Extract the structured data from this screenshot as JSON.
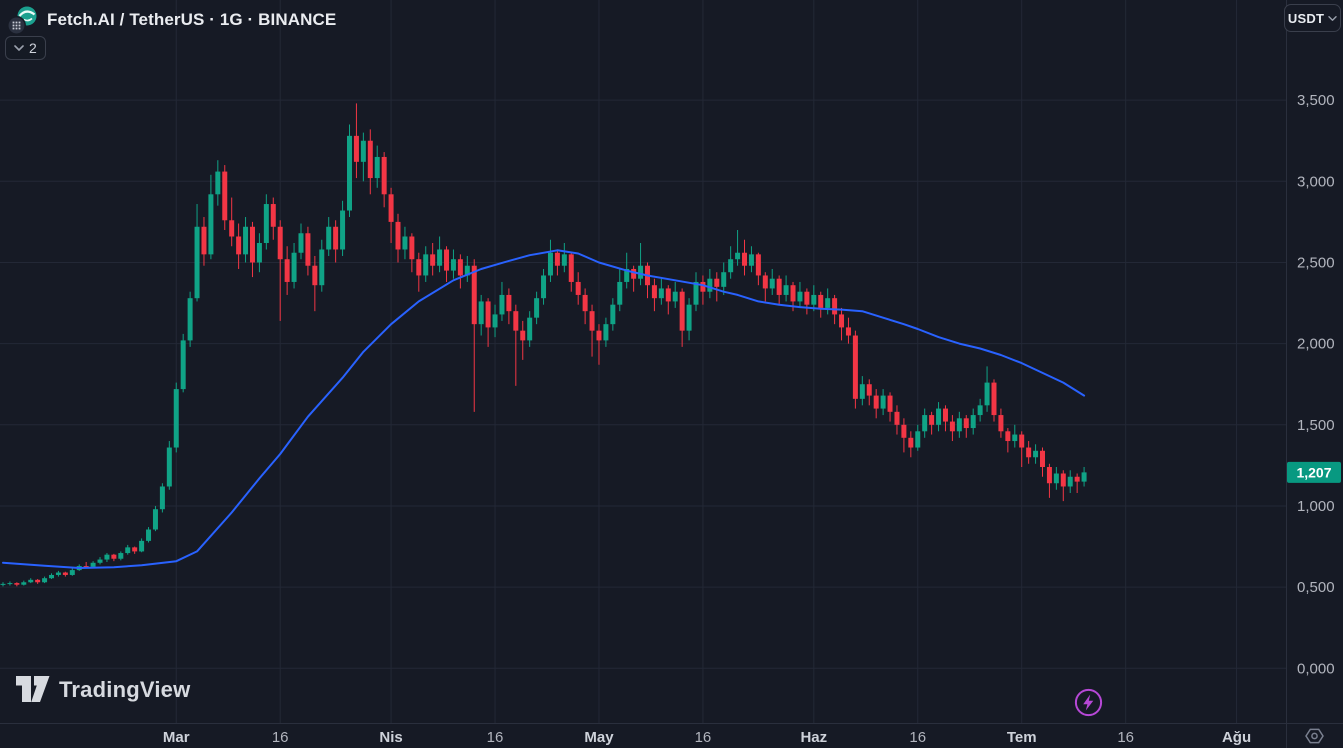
{
  "header": {
    "symbol_title": "Fetch.AI / TetherUS · 1G · BINANCE",
    "symbol_logo": "fetch-ai-logo",
    "legend_badge": {
      "count": "2",
      "icon": "chevron-down-icon"
    }
  },
  "currency_button": {
    "label": "USDT",
    "icon": "chevron-down-icon"
  },
  "watermark": {
    "brand": "TradingView"
  },
  "toolbar": {
    "flash_icon": "lightning-icon",
    "corner_icon": "hexagon-settings-icon"
  },
  "colors": {
    "background": "#161a25",
    "grid": "#232836",
    "axis_border": "#2a2f3d",
    "axis_text": "#b2b5be",
    "axis_text_major": "#ced2da",
    "candle_up": "#10a386",
    "candle_down": "#f23645",
    "ma_line": "#2962ff",
    "last_price_badge": "#089981",
    "flash_purple": "#b648d6"
  },
  "price_axis": {
    "ticks": [
      {
        "label": "3,500",
        "value": 3.5
      },
      {
        "label": "3,000",
        "value": 3.0
      },
      {
        "label": "2,500",
        "value": 2.5
      },
      {
        "label": "2,000",
        "value": 2.0
      },
      {
        "label": "1,500",
        "value": 1.5
      },
      {
        "label": "1,000",
        "value": 1.0
      },
      {
        "label": "0,500",
        "value": 0.5
      },
      {
        "label": "0,000",
        "value": 0.0
      }
    ],
    "last_price": {
      "label": "1,207",
      "value": 1.207,
      "direction": "up"
    }
  },
  "time_axis": {
    "ticks": [
      {
        "label": "Mar",
        "day": 25,
        "major": true
      },
      {
        "label": "16",
        "day": 40,
        "major": false
      },
      {
        "label": "Nis",
        "day": 56,
        "major": true
      },
      {
        "label": "16",
        "day": 71,
        "major": false
      },
      {
        "label": "May",
        "day": 86,
        "major": true
      },
      {
        "label": "16",
        "day": 101,
        "major": false
      },
      {
        "label": "Haz",
        "day": 117,
        "major": true
      },
      {
        "label": "16",
        "day": 132,
        "major": false
      },
      {
        "label": "Tem",
        "day": 147,
        "major": true
      },
      {
        "label": "16",
        "day": 162,
        "major": false
      },
      {
        "label": "Ağu",
        "day": 178,
        "major": true
      }
    ]
  },
  "chart_data": {
    "type": "candlestick",
    "title": "Fetch.AI / TetherUS",
    "interval": "1G",
    "exchange": "BINANCE",
    "quote_currency": "USDT",
    "ylim_visible": [
      0.0,
      3.5
    ],
    "grid": true,
    "last_price": 1.207,
    "candles_ohlc": [
      [
        0.515,
        0.53,
        0.505,
        0.52
      ],
      [
        0.52,
        0.535,
        0.51,
        0.525
      ],
      [
        0.525,
        0.53,
        0.505,
        0.515
      ],
      [
        0.515,
        0.54,
        0.51,
        0.53
      ],
      [
        0.53,
        0.555,
        0.525,
        0.545
      ],
      [
        0.545,
        0.55,
        0.52,
        0.53
      ],
      [
        0.53,
        0.565,
        0.525,
        0.555
      ],
      [
        0.555,
        0.585,
        0.55,
        0.575
      ],
      [
        0.575,
        0.6,
        0.565,
        0.59
      ],
      [
        0.59,
        0.595,
        0.565,
        0.575
      ],
      [
        0.575,
        0.615,
        0.57,
        0.605
      ],
      [
        0.605,
        0.64,
        0.6,
        0.63
      ],
      [
        0.63,
        0.655,
        0.615,
        0.625
      ],
      [
        0.625,
        0.66,
        0.62,
        0.65
      ],
      [
        0.65,
        0.685,
        0.64,
        0.67
      ],
      [
        0.67,
        0.71,
        0.655,
        0.7
      ],
      [
        0.7,
        0.705,
        0.66,
        0.675
      ],
      [
        0.675,
        0.72,
        0.665,
        0.71
      ],
      [
        0.71,
        0.76,
        0.7,
        0.745
      ],
      [
        0.745,
        0.75,
        0.705,
        0.72
      ],
      [
        0.72,
        0.8,
        0.715,
        0.785
      ],
      [
        0.785,
        0.87,
        0.775,
        0.855
      ],
      [
        0.855,
        1.0,
        0.845,
        0.98
      ],
      [
        0.98,
        1.14,
        0.96,
        1.12
      ],
      [
        1.12,
        1.4,
        1.1,
        1.36
      ],
      [
        1.36,
        1.76,
        1.33,
        1.72
      ],
      [
        1.72,
        2.06,
        1.7,
        2.02
      ],
      [
        2.02,
        2.32,
        1.98,
        2.28
      ],
      [
        2.28,
        2.86,
        2.26,
        2.72
      ],
      [
        2.72,
        2.78,
        2.48,
        2.55
      ],
      [
        2.55,
        3.04,
        2.52,
        2.92
      ],
      [
        2.92,
        3.13,
        2.85,
        3.06
      ],
      [
        3.06,
        3.1,
        2.7,
        2.76
      ],
      [
        2.76,
        2.9,
        2.6,
        2.66
      ],
      [
        2.66,
        2.74,
        2.46,
        2.55
      ],
      [
        2.55,
        2.78,
        2.5,
        2.72
      ],
      [
        2.72,
        2.75,
        2.41,
        2.5
      ],
      [
        2.5,
        2.68,
        2.44,
        2.62
      ],
      [
        2.62,
        2.92,
        2.58,
        2.86
      ],
      [
        2.86,
        2.9,
        2.64,
        2.72
      ],
      [
        2.72,
        2.76,
        2.14,
        2.52
      ],
      [
        2.52,
        2.6,
        2.3,
        2.38
      ],
      [
        2.38,
        2.62,
        2.34,
        2.56
      ],
      [
        2.56,
        2.74,
        2.52,
        2.68
      ],
      [
        2.68,
        2.72,
        2.42,
        2.48
      ],
      [
        2.48,
        2.54,
        2.2,
        2.36
      ],
      [
        2.36,
        2.64,
        2.32,
        2.58
      ],
      [
        2.58,
        2.78,
        2.54,
        2.72
      ],
      [
        2.72,
        2.76,
        2.5,
        2.58
      ],
      [
        2.58,
        2.88,
        2.54,
        2.82
      ],
      [
        2.82,
        3.35,
        2.78,
        3.28
      ],
      [
        3.28,
        3.48,
        3.02,
        3.12
      ],
      [
        3.12,
        3.3,
        3.0,
        3.25
      ],
      [
        3.25,
        3.32,
        2.92,
        3.02
      ],
      [
        3.02,
        3.22,
        2.96,
        3.15
      ],
      [
        3.15,
        3.18,
        2.84,
        2.92
      ],
      [
        2.92,
        2.96,
        2.62,
        2.75
      ],
      [
        2.75,
        2.8,
        2.5,
        2.58
      ],
      [
        2.58,
        2.72,
        2.52,
        2.66
      ],
      [
        2.66,
        2.68,
        2.44,
        2.52
      ],
      [
        2.52,
        2.56,
        2.32,
        2.42
      ],
      [
        2.42,
        2.6,
        2.38,
        2.55
      ],
      [
        2.55,
        2.62,
        2.42,
        2.48
      ],
      [
        2.48,
        2.66,
        2.44,
        2.58
      ],
      [
        2.58,
        2.6,
        2.38,
        2.45
      ],
      [
        2.45,
        2.58,
        2.4,
        2.52
      ],
      [
        2.52,
        2.55,
        2.34,
        2.42
      ],
      [
        2.42,
        2.54,
        2.38,
        2.48
      ],
      [
        2.48,
        2.52,
        1.58,
        2.12
      ],
      [
        2.12,
        2.3,
        2.05,
        2.26
      ],
      [
        2.26,
        2.28,
        1.98,
        2.1
      ],
      [
        2.1,
        2.24,
        2.04,
        2.18
      ],
      [
        2.18,
        2.38,
        2.14,
        2.3
      ],
      [
        2.3,
        2.34,
        2.12,
        2.2
      ],
      [
        2.2,
        2.24,
        1.74,
        2.08
      ],
      [
        2.08,
        2.14,
        1.9,
        2.02
      ],
      [
        2.02,
        2.2,
        1.98,
        2.16
      ],
      [
        2.16,
        2.32,
        2.12,
        2.28
      ],
      [
        2.28,
        2.46,
        2.24,
        2.42
      ],
      [
        2.42,
        2.64,
        2.38,
        2.56
      ],
      [
        2.56,
        2.58,
        2.42,
        2.48
      ],
      [
        2.48,
        2.62,
        2.44,
        2.55
      ],
      [
        2.55,
        2.56,
        2.32,
        2.38
      ],
      [
        2.38,
        2.44,
        2.24,
        2.3
      ],
      [
        2.3,
        2.34,
        2.12,
        2.2
      ],
      [
        2.2,
        2.24,
        1.92,
        2.08
      ],
      [
        2.08,
        2.12,
        1.87,
        2.02
      ],
      [
        2.02,
        2.16,
        1.98,
        2.12
      ],
      [
        2.12,
        2.28,
        2.08,
        2.24
      ],
      [
        2.24,
        2.46,
        2.2,
        2.38
      ],
      [
        2.38,
        2.56,
        2.34,
        2.46
      ],
      [
        2.46,
        2.48,
        2.32,
        2.4
      ],
      [
        2.4,
        2.62,
        2.36,
        2.48
      ],
      [
        2.48,
        2.5,
        2.28,
        2.36
      ],
      [
        2.36,
        2.4,
        2.2,
        2.28
      ],
      [
        2.28,
        2.4,
        2.24,
        2.34
      ],
      [
        2.34,
        2.36,
        2.18,
        2.26
      ],
      [
        2.26,
        2.38,
        2.22,
        2.32
      ],
      [
        2.32,
        2.34,
        1.98,
        2.08
      ],
      [
        2.08,
        2.28,
        2.02,
        2.24
      ],
      [
        2.24,
        2.44,
        2.2,
        2.38
      ],
      [
        2.38,
        2.42,
        2.24,
        2.32
      ],
      [
        2.32,
        2.46,
        2.28,
        2.4
      ],
      [
        2.4,
        2.44,
        2.26,
        2.35
      ],
      [
        2.35,
        2.5,
        2.3,
        2.44
      ],
      [
        2.44,
        2.6,
        2.4,
        2.52
      ],
      [
        2.52,
        2.7,
        2.48,
        2.56
      ],
      [
        2.56,
        2.64,
        2.42,
        2.48
      ],
      [
        2.48,
        2.6,
        2.44,
        2.55
      ],
      [
        2.55,
        2.56,
        2.36,
        2.42
      ],
      [
        2.42,
        2.44,
        2.26,
        2.34
      ],
      [
        2.34,
        2.46,
        2.3,
        2.4
      ],
      [
        2.4,
        2.42,
        2.24,
        2.3
      ],
      [
        2.3,
        2.42,
        2.26,
        2.36
      ],
      [
        2.36,
        2.38,
        2.2,
        2.26
      ],
      [
        2.26,
        2.38,
        2.22,
        2.32
      ],
      [
        2.32,
        2.34,
        2.18,
        2.24
      ],
      [
        2.24,
        2.36,
        2.2,
        2.3
      ],
      [
        2.3,
        2.32,
        2.16,
        2.22
      ],
      [
        2.22,
        2.34,
        2.18,
        2.28
      ],
      [
        2.28,
        2.3,
        2.12,
        2.18
      ],
      [
        2.18,
        2.22,
        2.02,
        2.1
      ],
      [
        2.1,
        2.16,
        2.0,
        2.05
      ],
      [
        2.05,
        2.08,
        1.6,
        1.66
      ],
      [
        1.66,
        1.8,
        1.62,
        1.75
      ],
      [
        1.75,
        1.78,
        1.62,
        1.68
      ],
      [
        1.68,
        1.72,
        1.54,
        1.6
      ],
      [
        1.6,
        1.72,
        1.56,
        1.68
      ],
      [
        1.68,
        1.7,
        1.52,
        1.58
      ],
      [
        1.58,
        1.62,
        1.44,
        1.5
      ],
      [
        1.5,
        1.54,
        1.33,
        1.42
      ],
      [
        1.42,
        1.46,
        1.3,
        1.36
      ],
      [
        1.36,
        1.5,
        1.34,
        1.46
      ],
      [
        1.46,
        1.6,
        1.42,
        1.56
      ],
      [
        1.56,
        1.58,
        1.44,
        1.5
      ],
      [
        1.5,
        1.64,
        1.46,
        1.6
      ],
      [
        1.6,
        1.62,
        1.46,
        1.52
      ],
      [
        1.52,
        1.56,
        1.4,
        1.46
      ],
      [
        1.46,
        1.58,
        1.42,
        1.54
      ],
      [
        1.54,
        1.56,
        1.42,
        1.48
      ],
      [
        1.48,
        1.6,
        1.44,
        1.56
      ],
      [
        1.56,
        1.66,
        1.52,
        1.62
      ],
      [
        1.62,
        1.86,
        1.58,
        1.76
      ],
      [
        1.76,
        1.78,
        1.52,
        1.56
      ],
      [
        1.56,
        1.6,
        1.42,
        1.46
      ],
      [
        1.46,
        1.48,
        1.33,
        1.4
      ],
      [
        1.4,
        1.5,
        1.36,
        1.44
      ],
      [
        1.44,
        1.46,
        1.24,
        1.36
      ],
      [
        1.36,
        1.4,
        1.26,
        1.3
      ],
      [
        1.3,
        1.38,
        1.26,
        1.34
      ],
      [
        1.34,
        1.36,
        1.18,
        1.24
      ],
      [
        1.24,
        1.26,
        1.05,
        1.14
      ],
      [
        1.14,
        1.24,
        1.1,
        1.2
      ],
      [
        1.2,
        1.22,
        1.03,
        1.12
      ],
      [
        1.12,
        1.22,
        1.08,
        1.18
      ],
      [
        1.18,
        1.2,
        1.08,
        1.15
      ],
      [
        1.15,
        1.24,
        1.12,
        1.207
      ]
    ],
    "ma_line": {
      "name": "moving-average",
      "color": "#2962ff",
      "points": [
        [
          0,
          0.65
        ],
        [
          6,
          0.632
        ],
        [
          11,
          0.618
        ],
        [
          16,
          0.622
        ],
        [
          20,
          0.635
        ],
        [
          25,
          0.66
        ],
        [
          28,
          0.72
        ],
        [
          33,
          0.96
        ],
        [
          37,
          1.17
        ],
        [
          40,
          1.32
        ],
        [
          44,
          1.55
        ],
        [
          49,
          1.79
        ],
        [
          52,
          1.95
        ],
        [
          56,
          2.12
        ],
        [
          60,
          2.26
        ],
        [
          65,
          2.39
        ],
        [
          69,
          2.46
        ],
        [
          73,
          2.51
        ],
        [
          76,
          2.545
        ],
        [
          80,
          2.575
        ],
        [
          83,
          2.555
        ],
        [
          86,
          2.5
        ],
        [
          90,
          2.45
        ],
        [
          93,
          2.42
        ],
        [
          97,
          2.39
        ],
        [
          101,
          2.36
        ],
        [
          104,
          2.32
        ],
        [
          106,
          2.3
        ],
        [
          109,
          2.26
        ],
        [
          112,
          2.24
        ],
        [
          115,
          2.225
        ],
        [
          118,
          2.215
        ],
        [
          121,
          2.21
        ],
        [
          124,
          2.2
        ],
        [
          127,
          2.16
        ],
        [
          130,
          2.12
        ],
        [
          132,
          2.09
        ],
        [
          135,
          2.04
        ],
        [
          138,
          2.0
        ],
        [
          141,
          1.97
        ],
        [
          144,
          1.93
        ],
        [
          147,
          1.88
        ],
        [
          150,
          1.82
        ],
        [
          153,
          1.76
        ],
        [
          156,
          1.68
        ]
      ]
    }
  }
}
